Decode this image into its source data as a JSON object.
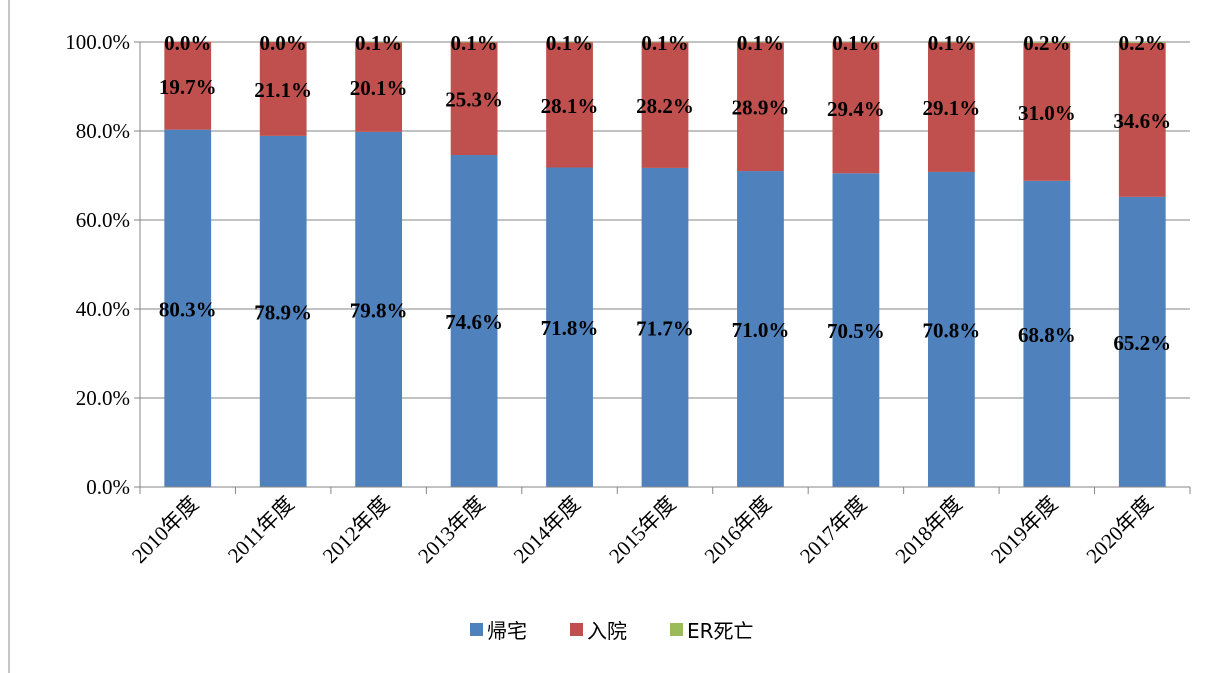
{
  "chart_data": {
    "type": "bar",
    "stacked": true,
    "title": "",
    "xlabel": "",
    "ylabel": "",
    "ylim": [
      0,
      100
    ],
    "y_ticks": [
      0,
      20,
      40,
      60,
      80,
      100
    ],
    "y_tick_labels": [
      "0.0%",
      "20.0%",
      "40.0%",
      "60.0%",
      "80.0%",
      "100.0%"
    ],
    "grid": true,
    "legend_position": "bottom",
    "categories": [
      "2010年度",
      "2011年度",
      "2012年度",
      "2013年度",
      "2014年度",
      "2015年度",
      "2016年度",
      "2017年度",
      "2018年度",
      "2019年度",
      "2020年度"
    ],
    "series": [
      {
        "name": "帰宅",
        "color": "#4F81BD",
        "values": [
          80.3,
          78.9,
          79.8,
          74.6,
          71.8,
          71.7,
          71.0,
          70.5,
          70.8,
          68.8,
          65.2
        ],
        "labels": [
          "80.3%",
          "78.9%",
          "79.8%",
          "74.6%",
          "71.8%",
          "71.7%",
          "71.0%",
          "70.5%",
          "70.8%",
          "68.8%",
          "65.2%"
        ]
      },
      {
        "name": "入院",
        "color": "#C0504D",
        "values": [
          19.7,
          21.1,
          20.1,
          25.3,
          28.1,
          28.2,
          28.9,
          29.4,
          29.1,
          31.0,
          34.6
        ],
        "labels": [
          "19.7%",
          "21.1%",
          "20.1%",
          "25.3%",
          "28.1%",
          "28.2%",
          "28.9%",
          "29.4%",
          "29.1%",
          "31.0%",
          "34.6%"
        ]
      },
      {
        "name": "ER死亡",
        "color": "#9BBB59",
        "values": [
          0.0,
          0.0,
          0.1,
          0.1,
          0.1,
          0.1,
          0.1,
          0.1,
          0.1,
          0.2,
          0.2
        ],
        "labels": [
          "0.0%",
          "0.0%",
          "0.1%",
          "0.1%",
          "0.1%",
          "0.1%",
          "0.1%",
          "0.1%",
          "0.1%",
          "0.2%",
          "0.2%"
        ]
      }
    ]
  }
}
